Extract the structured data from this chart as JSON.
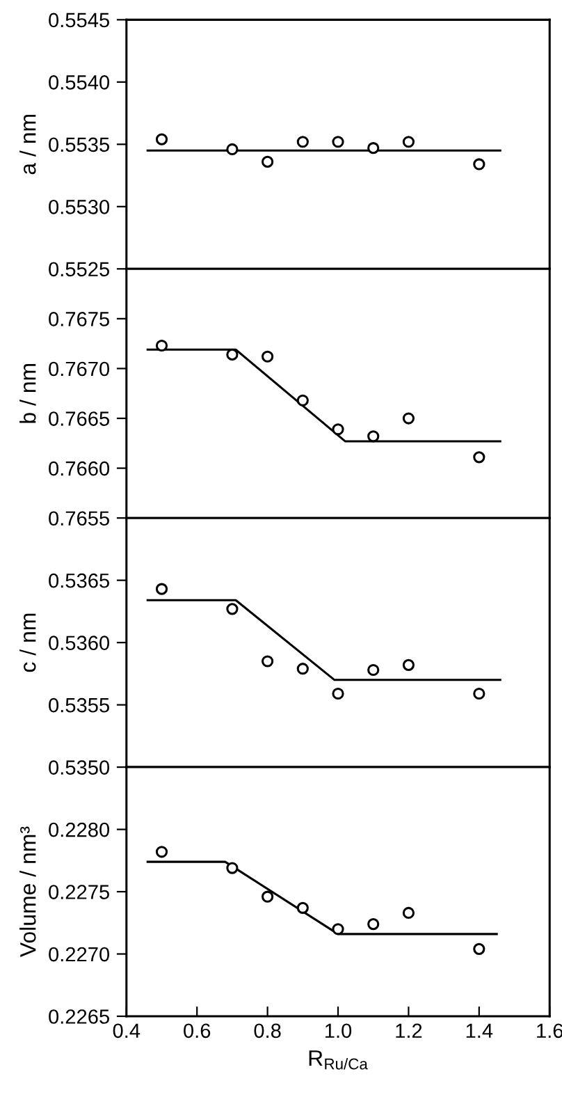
{
  "chart_data": [
    {
      "type": "scatter",
      "ylabel": "a / nm",
      "xlim": [
        0.4,
        1.6
      ],
      "ylim": [
        0.5525,
        0.5545
      ],
      "yticks": [
        {
          "value": 0.5525,
          "label": "0.5525"
        },
        {
          "value": 0.553,
          "label": "0.5530"
        },
        0.5535,
        {
          "value": 0.554,
          "label": "0.5540"
        },
        0.5545
      ],
      "tick_labels": "y",
      "grid": false,
      "legend": false,
      "series": [
        {
          "type": "scatter",
          "marker": "circle",
          "color": "#000000",
          "x": [
            0.5,
            0.7,
            0.8,
            0.9,
            1.0,
            1.1,
            1.2,
            1.4
          ],
          "values": [
            0.55354,
            0.55346,
            0.55336,
            0.55352,
            0.55352,
            0.55347,
            0.55352,
            0.55334
          ]
        },
        {
          "type": "line",
          "line_style": "solid",
          "color": "#000000",
          "x": [
            0.46,
            1.46
          ],
          "values": [
            0.55345,
            0.55345
          ]
        }
      ]
    },
    {
      "type": "scatter",
      "ylabel": "b / nm",
      "xlim": [
        0.4,
        1.6
      ],
      "ylim": [
        0.7655,
        0.768
      ],
      "yticks": [
        0.7655,
        {
          "value": 0.766,
          "label": "0.7660"
        },
        0.7665,
        {
          "value": 0.767,
          "label": "0.7670"
        },
        0.7675
      ],
      "tick_labels": "y",
      "grid": false,
      "legend": false,
      "series": [
        {
          "type": "scatter",
          "marker": "circle",
          "color": "#000000",
          "x": [
            0.5,
            0.7,
            0.8,
            0.9,
            1.0,
            1.1,
            1.2,
            1.4
          ],
          "values": [
            0.76723,
            0.76714,
            0.76712,
            0.76668,
            0.76639,
            0.76632,
            0.7665,
            0.76611
          ]
        },
        {
          "type": "line",
          "line_style": "solid",
          "color": "#000000",
          "x": [
            0.46,
            0.71,
            1.02,
            1.46
          ],
          "values": [
            0.76719,
            0.76719,
            0.76627,
            0.76627
          ]
        }
      ]
    },
    {
      "type": "scatter",
      "ylabel": "c / nm",
      "xlim": [
        0.4,
        1.6
      ],
      "ylim": [
        0.535,
        0.537
      ],
      "yticks": [
        {
          "value": 0.535,
          "label": "0.5350"
        },
        0.5355,
        {
          "value": 0.536,
          "label": "0.5360"
        },
        0.5365
      ],
      "tick_labels": "y",
      "grid": false,
      "legend": false,
      "series": [
        {
          "type": "scatter",
          "marker": "circle",
          "color": "#000000",
          "x": [
            0.5,
            0.7,
            0.8,
            0.9,
            1.0,
            1.1,
            1.2,
            1.4
          ],
          "values": [
            0.53643,
            0.53627,
            0.53585,
            0.53579,
            0.53559,
            0.53578,
            0.53582,
            0.53559
          ]
        },
        {
          "type": "line",
          "line_style": "solid",
          "color": "#000000",
          "x": [
            0.46,
            0.71,
            0.99,
            1.46
          ],
          "values": [
            0.53634,
            0.53634,
            0.5357,
            0.5357
          ]
        }
      ]
    },
    {
      "type": "scatter",
      "ylabel": "Volume / nm³",
      "xlabel": "R$_{Ru/Ca}$",
      "xlim": [
        0.4,
        1.6
      ],
      "xticks": [
        0.4,
        0.6,
        0.8,
        {
          "value": 1,
          "label": "1.0"
        },
        1.2,
        1.4,
        1.6
      ],
      "ylim": [
        0.2265,
        0.2285
      ],
      "yticks": [
        0.2265,
        {
          "value": 0.227,
          "label": "0.2270"
        },
        0.2275,
        {
          "value": 0.228,
          "label": "0.2280"
        }
      ],
      "grid": false,
      "legend": false,
      "series": [
        {
          "type": "scatter",
          "marker": "circle",
          "color": "#000000",
          "x": [
            0.5,
            0.7,
            0.8,
            0.9,
            1.0,
            1.1,
            1.2,
            1.4
          ],
          "values": [
            0.22782,
            0.22769,
            0.22746,
            0.22737,
            0.2272,
            0.22724,
            0.22733,
            0.22704
          ]
        },
        {
          "type": "line",
          "line_style": "solid",
          "color": "#000000",
          "x": [
            0.46,
            0.68,
            1.0,
            1.45
          ],
          "values": [
            0.22774,
            0.22774,
            0.22716,
            0.22716
          ]
        }
      ]
    }
  ]
}
